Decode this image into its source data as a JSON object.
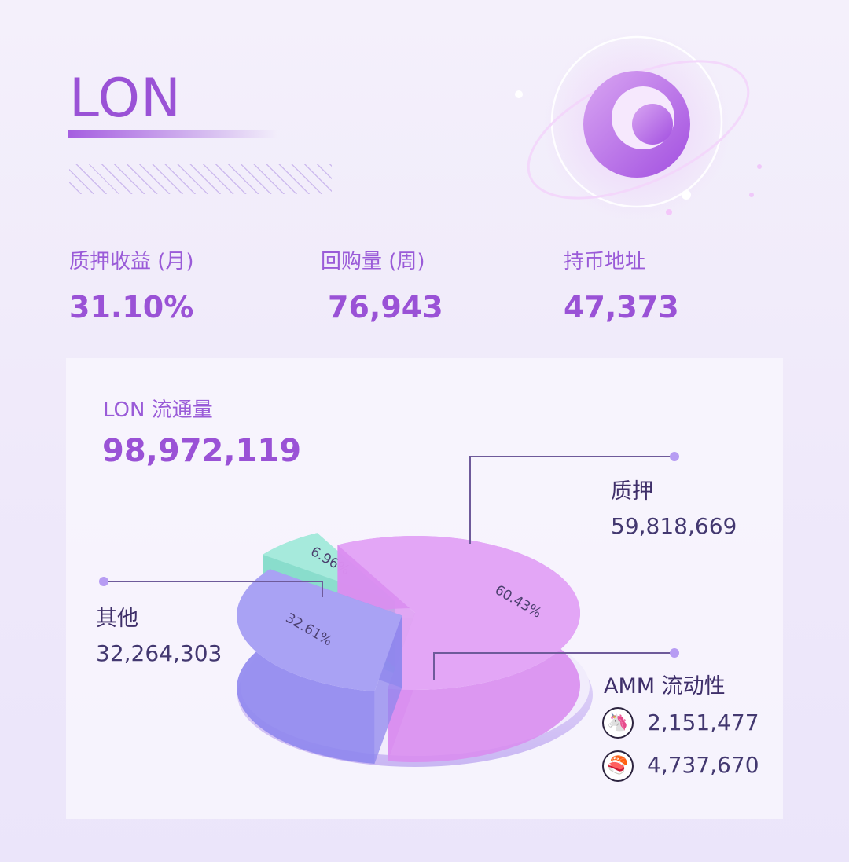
{
  "header": {
    "title": "LON"
  },
  "stats": [
    {
      "label": "质押收益 (月)",
      "value": "31.10%"
    },
    {
      "label": "回购量 (周)",
      "value": "76,943"
    },
    {
      "label": "持币地址",
      "value": "47,373"
    }
  ],
  "supply": {
    "label": "LON 流通量",
    "value": "98,972,119"
  },
  "legend": {
    "staking": {
      "title": "质押",
      "value": "59,818,669"
    },
    "other": {
      "title": "其他",
      "value": "32,264,303"
    },
    "amm": {
      "title": "AMM 流动性",
      "pools": [
        {
          "icon": "uniswap-unicorn-icon",
          "value": "2,151,477"
        },
        {
          "icon": "sushiswap-sushi-icon",
          "value": "4,737,670"
        }
      ]
    }
  },
  "colors": {
    "accent": "#9a52d6",
    "staking": "#e3a6f6",
    "other": "#a9a2f4",
    "amm": "#a6eadc"
  },
  "chart_data": {
    "type": "pie",
    "categories": [
      "质押",
      "其他",
      "AMM 流动性"
    ],
    "values": [
      60.43,
      32.61,
      6.96
    ],
    "labels": [
      "60.43%",
      "32.61%",
      "6.96%"
    ],
    "amounts": [
      59818669,
      32264303,
      6889147
    ]
  }
}
